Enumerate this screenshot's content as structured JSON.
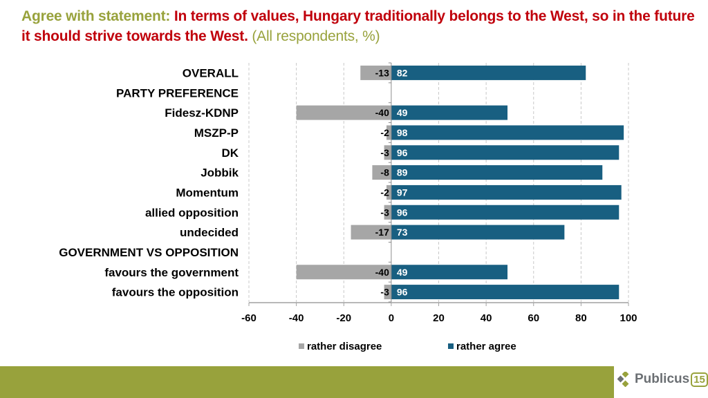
{
  "title": {
    "prefix": "Agree with statement:",
    "statement": "In terms of values, Hungary traditionally belongs to the West, so in the future it should strive towards the West.",
    "note": "(All respondents, %)"
  },
  "colors": {
    "disagree": "#a6a6a6",
    "agree": "#185f81",
    "accent_green": "#98a23c",
    "title_red": "#c0000b"
  },
  "chart_data": {
    "type": "bar",
    "orientation": "horizontal",
    "stacked": "diverging",
    "title": "Agree with statement: In terms of values, Hungary traditionally belongs to the West, so in the future it should strive towards the West. (All respondents, %)",
    "categories": [
      "OVERALL",
      "PARTY PREFERENCE",
      "Fidesz-KDNP",
      "MSZP-P",
      "DK",
      "Jobbik",
      "Momentum",
      "allied opposition",
      "undecided",
      "GOVERNMENT VS OPPOSITION",
      "favours the government",
      "favours the opposition"
    ],
    "series": [
      {
        "name": "rather disagree",
        "values": [
          -13,
          null,
          -40,
          -2,
          -3,
          -8,
          -2,
          -3,
          -17,
          null,
          -40,
          -3
        ]
      },
      {
        "name": "rather agree",
        "values": [
          82,
          null,
          49,
          98,
          96,
          89,
          97,
          96,
          73,
          null,
          49,
          96
        ]
      }
    ],
    "xlabel": "",
    "ylabel": "",
    "xlim": [
      -60,
      100
    ],
    "xticks": [
      -60,
      -40,
      -20,
      0,
      20,
      40,
      60,
      80,
      100
    ],
    "xtick_labels": [
      "-60",
      "-40",
      "-20",
      "0",
      "20",
      "40",
      "60",
      "80",
      "100"
    ],
    "grid": true,
    "legend": {
      "position": "bottom",
      "entries": [
        "rather disagree",
        "rather agree"
      ]
    }
  },
  "footer": {
    "logo_text": "Publicus",
    "logo_number": "15"
  }
}
